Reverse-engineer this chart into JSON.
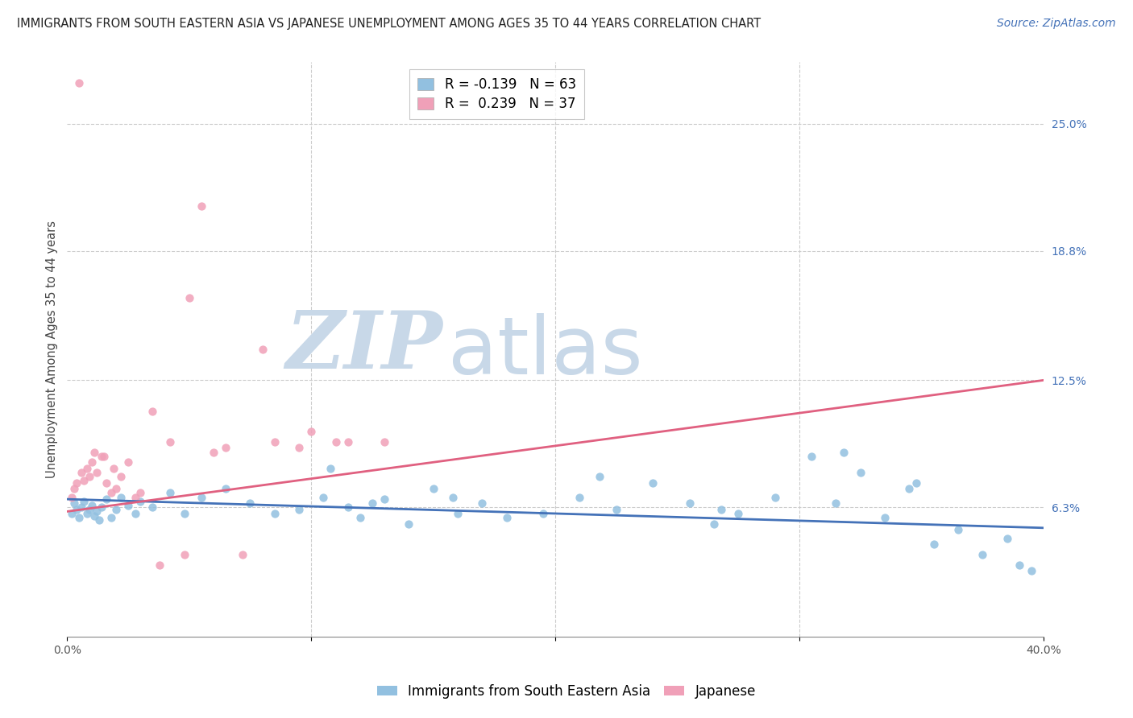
{
  "title": "IMMIGRANTS FROM SOUTH EASTERN ASIA VS JAPANESE UNEMPLOYMENT AMONG AGES 35 TO 44 YEARS CORRELATION CHART",
  "source": "Source: ZipAtlas.com",
  "ylabel": "Unemployment Among Ages 35 to 44 years",
  "xlim": [
    0.0,
    0.4
  ],
  "ylim": [
    0.0,
    0.28
  ],
  "ytick_right_vals": [
    0.063,
    0.125,
    0.188,
    0.25
  ],
  "ytick_right_labels": [
    "6.3%",
    "12.5%",
    "18.8%",
    "25.0%"
  ],
  "blue_color": "#92c0e0",
  "pink_color": "#f0a0b8",
  "blue_line_color": "#4472b8",
  "pink_line_color": "#e06080",
  "legend_blue_label": "Immigrants from South Eastern Asia",
  "legend_pink_label": "Japanese",
  "R_blue": -0.139,
  "N_blue": 63,
  "R_pink": 0.239,
  "N_pink": 37,
  "watermark_zip": "ZIP",
  "watermark_atlas": "atlas",
  "watermark_color": "#c8d8e8",
  "blue_trend_x": [
    0.0,
    0.4
  ],
  "blue_trend_y": [
    0.067,
    0.053
  ],
  "pink_trend_x": [
    0.0,
    0.4
  ],
  "pink_trend_y": [
    0.061,
    0.125
  ],
  "blue_x": [
    0.002,
    0.003,
    0.004,
    0.005,
    0.006,
    0.007,
    0.008,
    0.009,
    0.01,
    0.011,
    0.012,
    0.013,
    0.014,
    0.016,
    0.018,
    0.02,
    0.022,
    0.025,
    0.028,
    0.03,
    0.035,
    0.042,
    0.048,
    0.055,
    0.065,
    0.075,
    0.085,
    0.095,
    0.105,
    0.115,
    0.12,
    0.125,
    0.13,
    0.14,
    0.15,
    0.16,
    0.17,
    0.18,
    0.195,
    0.21,
    0.225,
    0.24,
    0.255,
    0.265,
    0.275,
    0.29,
    0.305,
    0.315,
    0.325,
    0.335,
    0.345,
    0.355,
    0.365,
    0.375,
    0.385,
    0.39,
    0.395,
    0.108,
    0.218,
    0.268,
    0.318,
    0.348,
    0.158
  ],
  "blue_y": [
    0.06,
    0.065,
    0.062,
    0.058,
    0.063,
    0.066,
    0.06,
    0.062,
    0.064,
    0.059,
    0.061,
    0.057,
    0.063,
    0.067,
    0.058,
    0.062,
    0.068,
    0.064,
    0.06,
    0.066,
    0.063,
    0.07,
    0.06,
    0.068,
    0.072,
    0.065,
    0.06,
    0.062,
    0.068,
    0.063,
    0.058,
    0.065,
    0.067,
    0.055,
    0.072,
    0.06,
    0.065,
    0.058,
    0.06,
    0.068,
    0.062,
    0.075,
    0.065,
    0.055,
    0.06,
    0.068,
    0.088,
    0.065,
    0.08,
    0.058,
    0.072,
    0.045,
    0.052,
    0.04,
    0.048,
    0.035,
    0.032,
    0.082,
    0.078,
    0.062,
    0.09,
    0.075,
    0.068
  ],
  "pink_x": [
    0.002,
    0.003,
    0.004,
    0.005,
    0.006,
    0.007,
    0.008,
    0.009,
    0.01,
    0.011,
    0.012,
    0.014,
    0.016,
    0.019,
    0.022,
    0.028,
    0.035,
    0.042,
    0.05,
    0.06,
    0.072,
    0.085,
    0.1,
    0.115,
    0.13,
    0.048,
    0.018,
    0.025,
    0.038,
    0.03,
    0.015,
    0.02,
    0.055,
    0.065,
    0.08,
    0.095,
    0.11
  ],
  "pink_y": [
    0.068,
    0.072,
    0.075,
    0.27,
    0.08,
    0.076,
    0.082,
    0.078,
    0.085,
    0.09,
    0.08,
    0.088,
    0.075,
    0.082,
    0.078,
    0.068,
    0.11,
    0.095,
    0.165,
    0.09,
    0.04,
    0.095,
    0.1,
    0.095,
    0.095,
    0.04,
    0.07,
    0.085,
    0.035,
    0.07,
    0.088,
    0.072,
    0.21,
    0.092,
    0.14,
    0.092,
    0.095
  ],
  "title_fontsize": 10.5,
  "source_fontsize": 10,
  "axis_label_fontsize": 10.5,
  "tick_fontsize": 10,
  "legend_fontsize": 12
}
